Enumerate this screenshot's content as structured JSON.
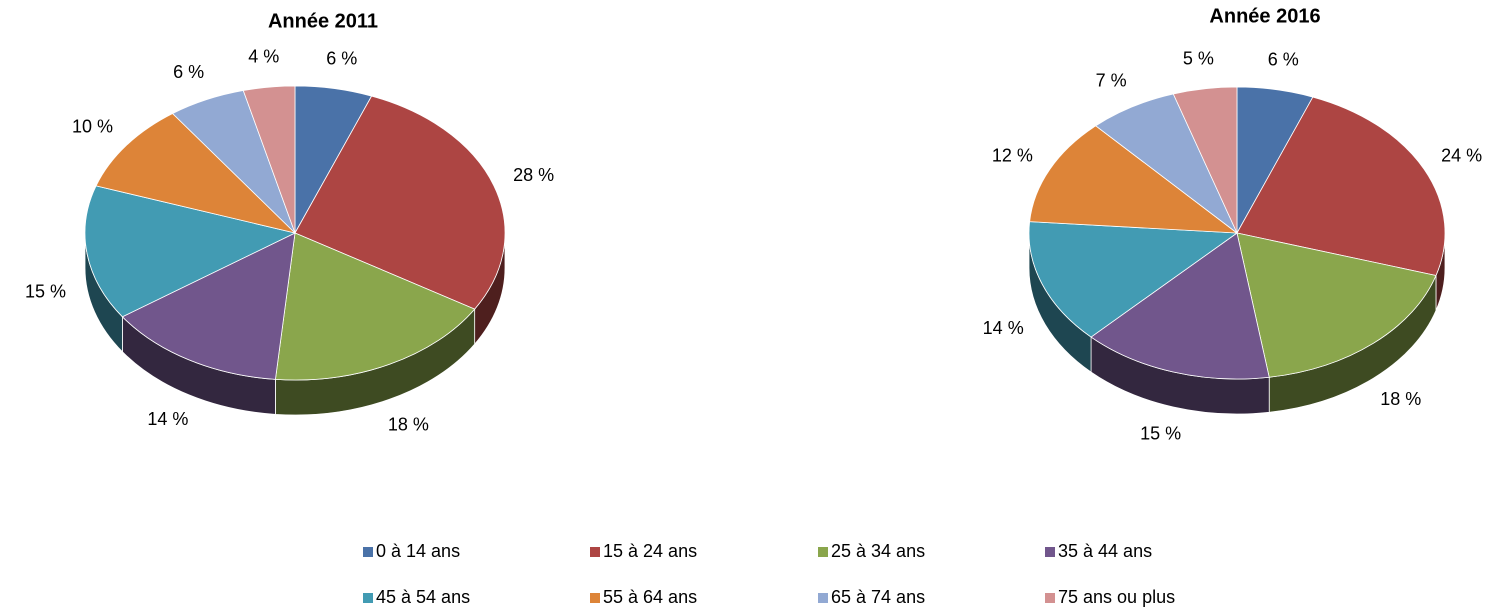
{
  "legend": {
    "categories": [
      "0 à 14 ans",
      "15 à 24 ans",
      "25 à 34 ans",
      "35 à 44 ans",
      "45 à 54 ans",
      "55 à 64 ans",
      "65 à 74 ans",
      "75 ans ou plus"
    ],
    "colors": [
      "#4a72a8",
      "#ad4543",
      "#8aa64c",
      "#71568c",
      "#429bb3",
      "#dd8438",
      "#92a9d3",
      "#d39191"
    ]
  },
  "chart_data": [
    {
      "type": "pie",
      "title": "Année 2011",
      "values": [
        6,
        28,
        18,
        14,
        15,
        10,
        6,
        4
      ],
      "value_labels": [
        "6 %",
        "28 %",
        "18 %",
        "14 %",
        "15 %",
        "10 %",
        "6 %",
        "4 %"
      ]
    },
    {
      "type": "pie",
      "title": "Année 2016",
      "values": [
        6,
        24,
        18,
        15,
        14,
        12,
        7,
        5
      ],
      "value_labels": [
        "6 %",
        "24 %",
        "18 %",
        "15 %",
        "14 %",
        "12 %",
        "7 %",
        "5 %"
      ]
    }
  ]
}
